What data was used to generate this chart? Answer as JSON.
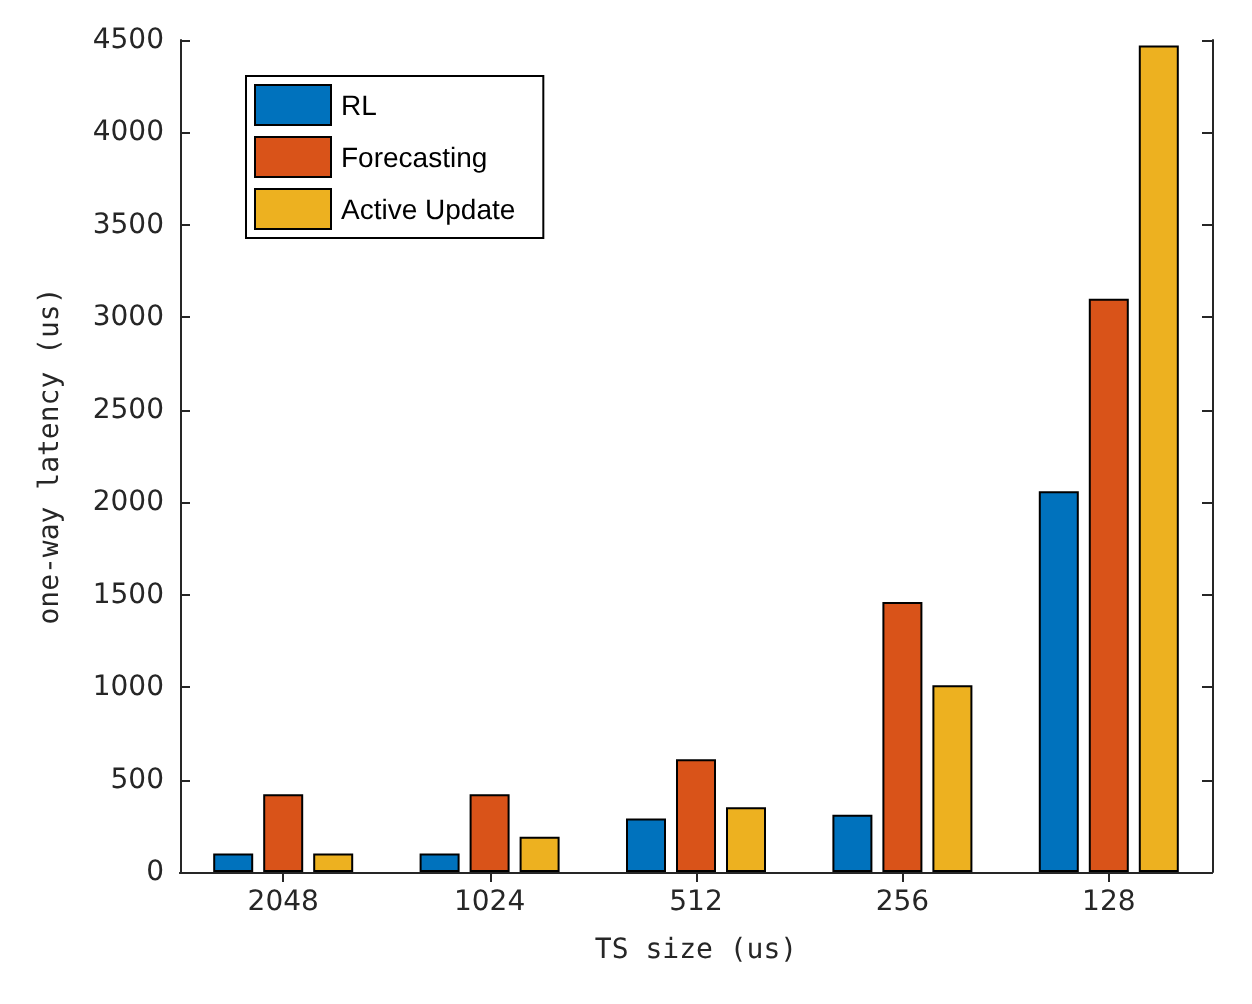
{
  "chart_data": {
    "type": "bar",
    "xlabel": "TS size (us)",
    "ylabel": "one-way latency (us)",
    "categories": [
      "2048",
      "1024",
      "512",
      "256",
      "128"
    ],
    "series": [
      {
        "name": "RL",
        "color": "#0072bd",
        "values": [
          100,
          100,
          290,
          310,
          2060
        ]
      },
      {
        "name": "Forecasting",
        "color": "#d95319",
        "values": [
          420,
          420,
          610,
          1460,
          3100
        ]
      },
      {
        "name": "Active Update",
        "color": "#edb120",
        "values": [
          100,
          190,
          350,
          1010,
          4470
        ]
      }
    ],
    "ylim": [
      0,
      4500
    ],
    "yticks": [
      0,
      500,
      1000,
      1500,
      2000,
      2500,
      3000,
      3500,
      4000,
      4500
    ],
    "grid": false,
    "legend": "top left"
  }
}
